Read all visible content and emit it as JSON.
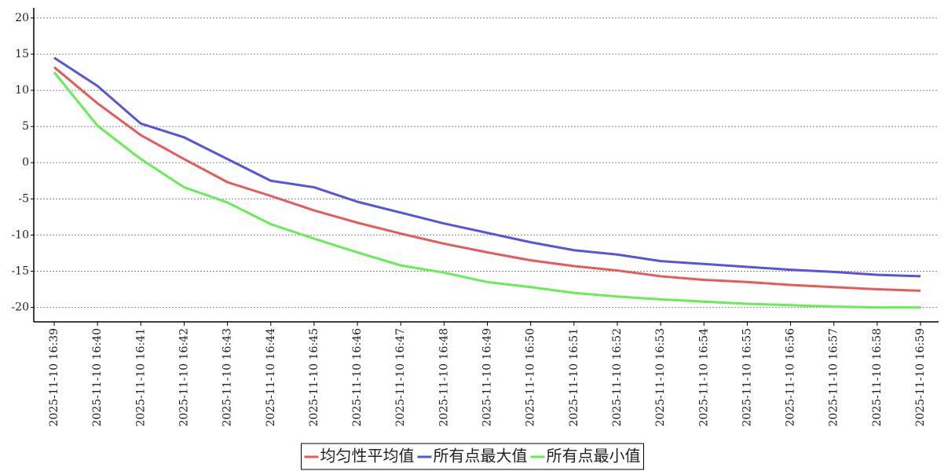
{
  "chart_data": {
    "type": "line",
    "categories": [
      "2025-11-10 16:39",
      "2025-11-10 16:40",
      "2025-11-10 16:41",
      "2025-11-10 16:42",
      "2025-11-10 16:43",
      "2025-11-10 16:44",
      "2025-11-10 16:45",
      "2025-11-10 16:46",
      "2025-11-10 16:47",
      "2025-11-10 16:48",
      "2025-11-10 16:49",
      "2025-11-10 16:50",
      "2025-11-10 16:51",
      "2025-11-10 16:52",
      "2025-11-10 16:53",
      "2025-11-10 16:54",
      "2025-11-10 16:55",
      "2025-11-10 16:56",
      "2025-11-10 16:57",
      "2025-11-10 16:58",
      "2025-11-10 16:59"
    ],
    "series": [
      {
        "name": "均匀性平均值",
        "color": "#e85a5a",
        "values": [
          13.2,
          8.2,
          3.8,
          0.5,
          -2.7,
          -4.6,
          -6.6,
          -8.3,
          -9.8,
          -11.2,
          -12.4,
          -13.5,
          -14.3,
          -14.9,
          -15.7,
          -16.2,
          -16.5,
          -16.9,
          -17.2,
          -17.5,
          -17.7
        ]
      },
      {
        "name": "所有点最大值",
        "color": "#5555dd",
        "values": [
          14.5,
          10.6,
          5.4,
          3.5,
          0.5,
          -2.5,
          -3.4,
          -5.4,
          -6.9,
          -8.4,
          -9.7,
          -11.0,
          -12.1,
          -12.7,
          -13.6,
          -14.0,
          -14.4,
          -14.8,
          -15.1,
          -15.5,
          -15.7
        ]
      },
      {
        "name": "所有点最小值",
        "color": "#66ee55",
        "values": [
          12.5,
          5.1,
          0.5,
          -3.4,
          -5.5,
          -8.5,
          -10.5,
          -12.4,
          -14.2,
          -15.2,
          -16.5,
          -17.2,
          -18.0,
          -18.5,
          -18.9,
          -19.2,
          -19.5,
          -19.7,
          -19.9,
          -20.0,
          -20.0
        ]
      }
    ],
    "ylim": [
      -22,
      21.4
    ],
    "yticks": [
      -20,
      -15,
      -10,
      -5,
      0,
      5,
      10,
      15,
      20
    ],
    "grid": true
  }
}
